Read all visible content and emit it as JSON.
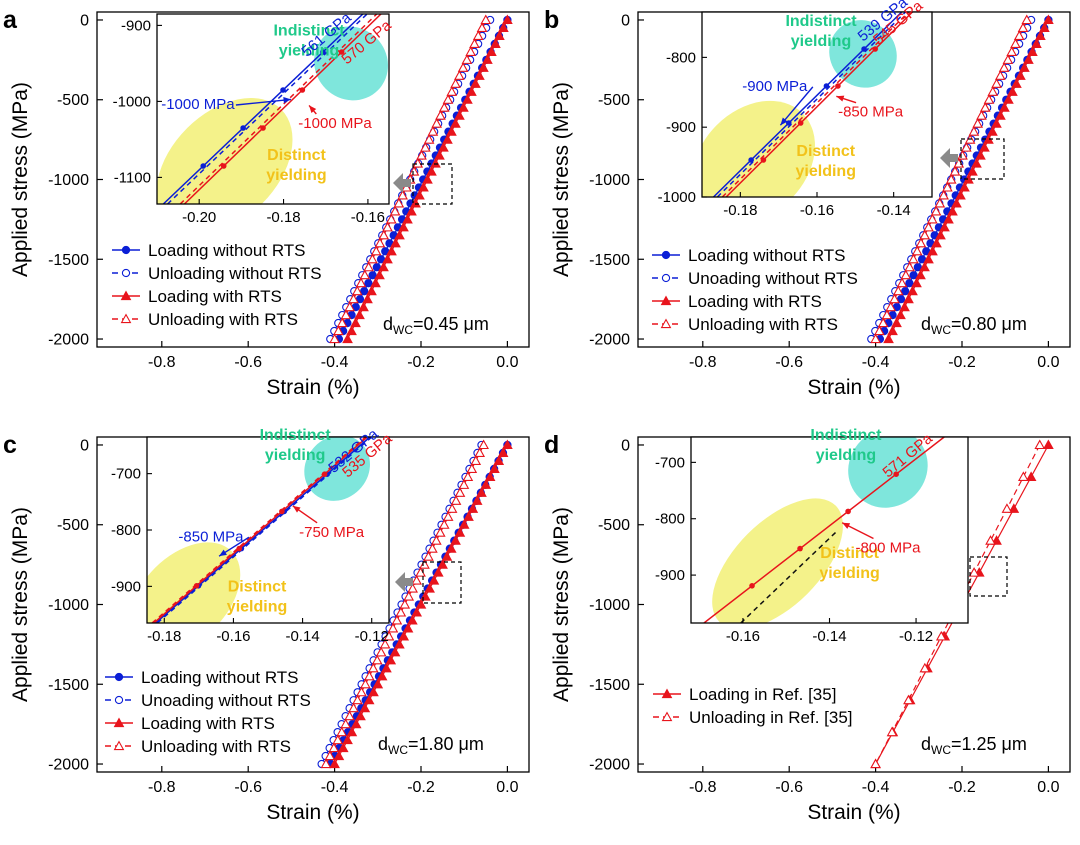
{
  "colors": {
    "blue": "#0b1fd6",
    "red": "#e8141c",
    "cyan": "#7fe6dc",
    "yellow": "#f4f28a",
    "green_text": "#1fc98a",
    "yellow_text": "#f2c21a",
    "arrow_gray": "#8a8a8a"
  },
  "panels": [
    {
      "letter": "a",
      "xlabel": "Strain (%)",
      "ylabel": "Applied stress (MPa)",
      "xticks": [
        "-0.8",
        "-0.6",
        "-0.4",
        "-0.2",
        "0.0"
      ],
      "yticks": [
        "0",
        "-500",
        "-1000",
        "-1500",
        "-2000"
      ],
      "legend": [
        "Loading without RTS",
        "Unloading without RTS",
        "Loading with RTS",
        "Unloading with RTS"
      ],
      "dwc": "=0.45 μm",
      "inset": {
        "xticks": [
          "-0.20",
          "-0.18",
          "-0.16"
        ],
        "yticks": [
          "-900",
          "-1000",
          "-1100"
        ],
        "indistinct": [
          "Indistinct",
          "yielding"
        ],
        "distinct": [
          "Distinct",
          "yielding"
        ],
        "mod_blue": "561 GPa",
        "mod_red": "570 GPa",
        "yield_blue": "-1000 MPa",
        "yield_red": "-1000 MPa"
      }
    },
    {
      "letter": "b",
      "xlabel": "Strain (%)",
      "ylabel": "Applied stress (MPa)",
      "xticks": [
        "-0.8",
        "-0.6",
        "-0.4",
        "-0.2",
        "0.0"
      ],
      "yticks": [
        "0",
        "-500",
        "-1000",
        "-1500",
        "-2000"
      ],
      "legend": [
        "Loading without RTS",
        "Unoading without RTS",
        "Loading with RTS",
        "Unloading with RTS"
      ],
      "dwc": "=0.80 μm",
      "inset": {
        "xticks": [
          "-0.18",
          "-0.16",
          "-0.14"
        ],
        "yticks": [
          "-800",
          "-900",
          "-1000"
        ],
        "indistinct": [
          "Indistinct",
          "yielding"
        ],
        "distinct": [
          "Distinct",
          "yielding"
        ],
        "mod_blue": "539 GPa",
        "mod_red": "545 GPa",
        "yield_blue": "-900 MPa",
        "yield_red": "-850 MPa"
      }
    },
    {
      "letter": "c",
      "xlabel": "Strain (%)",
      "ylabel": "Applied stress (MPa)",
      "xticks": [
        "-0.8",
        "-0.6",
        "-0.4",
        "-0.2",
        "0.0"
      ],
      "yticks": [
        "0",
        "-500",
        "-1000",
        "-1500",
        "-2000"
      ],
      "legend": [
        "Loading without RTS",
        "Unoading without RTS",
        "Loading with RTS",
        "Unloading with RTS"
      ],
      "dwc": "=1.80 μm",
      "inset": {
        "xticks": [
          "-0.18",
          "-0.16",
          "-0.14",
          "-0.12"
        ],
        "yticks": [
          "-700",
          "-800",
          "-900"
        ],
        "indistinct": [
          "Indistinct",
          "yielding"
        ],
        "distinct": [
          "Distinct",
          "yielding"
        ],
        "mod_blue": "532 GPa",
        "mod_red": "535 GPa",
        "yield_blue": "-850 MPa",
        "yield_red": "-750 MPa"
      }
    },
    {
      "letter": "d",
      "xlabel": "Strain (%)",
      "ylabel": "Applied stress (MPa)",
      "xticks": [
        "-0.8",
        "-0.6",
        "-0.4",
        "-0.2",
        "0.0"
      ],
      "yticks": [
        "0",
        "-500",
        "-1000",
        "-1500",
        "-2000"
      ],
      "legend": [
        "Loading in Ref. [35]",
        "Unloading in Ref. [35]"
      ],
      "dwc": "=1.25 μm",
      "inset": {
        "xticks": [
          "-0.16",
          "-0.14",
          "-0.12"
        ],
        "yticks": [
          "-700",
          "-800",
          "-900"
        ],
        "indistinct": [
          "Indistinct",
          "yielding"
        ],
        "distinct": [
          "Distinct",
          "yielding"
        ],
        "mod_red": "571 GPa",
        "yield_red": "-800 MPa"
      }
    }
  ],
  "chart_data": [
    {
      "type": "line",
      "panel": "a",
      "xlabel": "Strain (%)",
      "ylabel": "Applied stress (MPa)",
      "xlim": [
        -0.95,
        0.05
      ],
      "ylim": [
        -2050,
        50
      ],
      "legend_position": "bottom-left",
      "series": [
        {
          "name": "Loading without RTS",
          "color": "#0b1fd6",
          "marker": "filled-circle",
          "dash": false,
          "x": [
            0.0,
            -0.39
          ],
          "y": [
            0,
            -2000
          ]
        },
        {
          "name": "Unloading without RTS",
          "color": "#0b1fd6",
          "marker": "open-circle",
          "dash": true,
          "x": [
            -0.04,
            -0.41
          ],
          "y": [
            0,
            -2000
          ]
        },
        {
          "name": "Loading with RTS",
          "color": "#e8141c",
          "marker": "filled-triangle",
          "dash": false,
          "x": [
            0.0,
            -0.37
          ],
          "y": [
            0,
            -2000
          ]
        },
        {
          "name": "Unloading with RTS",
          "color": "#e8141c",
          "marker": "open-triangle",
          "dash": true,
          "x": [
            -0.05,
            -0.4
          ],
          "y": [
            0,
            -2000
          ]
        }
      ],
      "inset": {
        "xlim": [
          -0.21,
          -0.155
        ],
        "ylim": [
          -1135,
          -885
        ],
        "lines": [
          {
            "color": "#0b1fd6",
            "dash": false,
            "x": [
              -0.2085,
              -0.1612
            ],
            "y": [
              -1135,
              -885
            ]
          },
          {
            "color": "#0b1fd6",
            "dash": true,
            "x": [
              -0.2075,
              -0.1602
            ],
            "y": [
              -1135,
              -885
            ]
          },
          {
            "color": "#e8141c",
            "dash": false,
            "x": [
              -0.2035,
              -0.1569
            ],
            "y": [
              -1135,
              -885
            ]
          },
          {
            "color": "#e8141c",
            "dash": true,
            "x": [
              -0.2045,
              -0.1579
            ],
            "y": [
              -1135,
              -885
            ]
          }
        ],
        "annotations": {
          "blue_label": [
            -0.1745,
            -942
          ],
          "red_label": [
            -0.165,
            -952
          ],
          "blue_yield": [
            -0.1773,
            -1000
          ],
          "blue_text": [
            -0.2003,
            -1010
          ],
          "red_yield": [
            -0.1749,
            -1000
          ],
          "red_text": [
            -0.1765,
            -1035
          ],
          "cyan": [
            -0.164,
            -950,
            0.0085,
            50,
            0.055
          ],
          "yellow": [
            -0.194,
            -1085,
            0.019,
            70,
            0.055
          ]
        }
      }
    },
    {
      "type": "line",
      "panel": "b",
      "xlabel": "Strain (%)",
      "ylabel": "Applied stress (MPa)",
      "xlim": [
        -0.95,
        0.05
      ],
      "ylim": [
        -2050,
        50
      ],
      "legend_position": "bottom-left",
      "series": [
        {
          "name": "Loading without RTS",
          "color": "#0b1fd6",
          "marker": "filled-circle",
          "dash": false,
          "x": [
            0.0,
            -0.39
          ],
          "y": [
            0,
            -2000
          ]
        },
        {
          "name": "Unoading without RTS",
          "color": "#0b1fd6",
          "marker": "open-circle",
          "dash": true,
          "x": [
            -0.04,
            -0.41
          ],
          "y": [
            0,
            -2000
          ]
        },
        {
          "name": "Loading with RTS",
          "color": "#e8141c",
          "marker": "filled-triangle",
          "dash": false,
          "x": [
            0.0,
            -0.37
          ],
          "y": [
            0,
            -2000
          ]
        },
        {
          "name": "Unloading with RTS",
          "color": "#e8141c",
          "marker": "open-triangle",
          "dash": true,
          "x": [
            -0.05,
            -0.4
          ],
          "y": [
            0,
            -2000
          ]
        }
      ],
      "inset": {
        "xlim": [
          -0.19,
          -0.13
        ],
        "ylim": [
          -1000,
          -735
        ],
        "lines": [
          {
            "color": "#0b1fd6",
            "dash": false,
            "x": [
              -0.187,
              -0.1379
            ],
            "y": [
              -1000,
              -735
            ]
          },
          {
            "color": "#0b1fd6",
            "dash": true,
            "x": [
              -0.186,
              -0.1369
            ],
            "y": [
              -1000,
              -735
            ]
          },
          {
            "color": "#e8141c",
            "dash": false,
            "x": [
              -0.1837,
              -0.1351
            ],
            "y": [
              -1000,
              -735
            ]
          },
          {
            "color": "#e8141c",
            "dash": true,
            "x": [
              -0.1847,
              -0.1361
            ],
            "y": [
              -1000,
              -735
            ]
          }
        ],
        "annotations": {
          "blue_label": [
            -0.148,
            -778
          ],
          "red_label": [
            -0.144,
            -783
          ],
          "blue_yield": [
            -0.1685,
            -900
          ],
          "blue_text": [
            -0.171,
            -848
          ],
          "red_yield": [
            -0.156,
            -850
          ],
          "red_text": [
            -0.1545,
            -885
          ],
          "cyan": [
            -0.148,
            -795,
            0.0085,
            50,
            0.055
          ],
          "yellow": [
            -0.1765,
            -950,
            0.018,
            75,
            0.055
          ]
        }
      }
    },
    {
      "type": "line",
      "panel": "c",
      "xlabel": "Strain (%)",
      "ylabel": "Applied stress (MPa)",
      "xlim": [
        -0.95,
        0.05
      ],
      "ylim": [
        -2050,
        50
      ],
      "legend_position": "bottom-left",
      "series": [
        {
          "name": "Loading without RTS",
          "color": "#0b1fd6",
          "marker": "filled-circle",
          "dash": false,
          "x": [
            0.0,
            -0.41
          ],
          "y": [
            0,
            -2000
          ]
        },
        {
          "name": "Unoading without RTS",
          "color": "#0b1fd6",
          "marker": "open-circle",
          "dash": true,
          "x": [
            -0.06,
            -0.43
          ],
          "y": [
            0,
            -2000
          ]
        },
        {
          "name": "Loading with RTS",
          "color": "#e8141c",
          "marker": "filled-triangle",
          "dash": false,
          "x": [
            0.0,
            -0.4
          ],
          "y": [
            0,
            -2000
          ]
        },
        {
          "name": "Unloading with RTS",
          "color": "#e8141c",
          "marker": "open-triangle",
          "dash": true,
          "x": [
            -0.055,
            -0.42
          ],
          "y": [
            0,
            -2000
          ]
        }
      ],
      "inset": {
        "xlim": [
          -0.185,
          -0.115
        ],
        "ylim": [
          -965,
          -635
        ],
        "lines": [
          {
            "color": "#0b1fd6",
            "dash": false,
            "x": [
              -0.1825,
              -0.1205
            ],
            "y": [
              -965,
              -635
            ]
          },
          {
            "color": "#0b1fd6",
            "dash": true,
            "x": [
              -0.182,
              -0.12
            ],
            "y": [
              -965,
              -635
            ]
          },
          {
            "color": "#e8141c",
            "dash": false,
            "x": [
              -0.183,
              -0.1213
            ],
            "y": [
              -965,
              -635
            ]
          },
          {
            "color": "#e8141c",
            "dash": true,
            "x": [
              -0.1835,
              -0.1218
            ],
            "y": [
              -965,
              -635
            ]
          }
        ],
        "annotations": {
          "blue_label": [
            -0.131,
            -700
          ],
          "red_label": [
            -0.127,
            -708
          ],
          "blue_yield": [
            -0.163,
            -850
          ],
          "blue_text": [
            -0.1665,
            -820
          ],
          "red_yield": [
            -0.144,
            -750
          ],
          "red_text": [
            -0.141,
            -812
          ],
          "cyan": [
            -0.13,
            -690,
            0.01,
            55,
            0.055
          ],
          "yellow": [
            -0.174,
            -920,
            0.019,
            75,
            0.055
          ]
        }
      }
    },
    {
      "type": "line",
      "panel": "d",
      "xlabel": "Strain (%)",
      "ylabel": "Applied stress (MPa)",
      "xlim": [
        -0.95,
        0.05
      ],
      "ylim": [
        -2050,
        50
      ],
      "legend_position": "bottom-left",
      "series": [
        {
          "name": "Loading in Ref. [35]",
          "color": "#e8141c",
          "marker": "filled-triangle",
          "dash": false,
          "x": [
            0.0,
            -0.4
          ],
          "y": [
            0,
            -2000
          ]
        },
        {
          "name": "Unloading in Ref. [35]",
          "color": "#e8141c",
          "marker": "open-triangle",
          "dash": true,
          "x": [
            -0.02,
            -0.4
          ],
          "y": [
            0,
            -2000
          ]
        }
      ],
      "inset": {
        "xlim": [
          -0.172,
          -0.108
        ],
        "ylim": [
          -985,
          -655
        ],
        "lines": [
          {
            "color": "#e8141c",
            "dash": false,
            "x": [
              -0.169,
              -0.1135
            ],
            "y": [
              -985,
              -655
            ]
          },
          {
            "color": "#111111",
            "dash": true,
            "x": [
              -0.1605,
              -0.138
            ],
            "y": [
              -985,
              -820
            ]
          }
        ],
        "annotations": {
          "red_label": [
            -0.1265,
            -728
          ],
          "red_yield": [
            -0.138,
            -800
          ],
          "red_text": [
            -0.134,
            -860
          ],
          "cyan": [
            -0.1265,
            -710,
            0.0095,
            68,
            0.06
          ],
          "yellow": [
            -0.152,
            -880,
            0.019,
            75,
            0.055
          ]
        }
      }
    }
  ]
}
